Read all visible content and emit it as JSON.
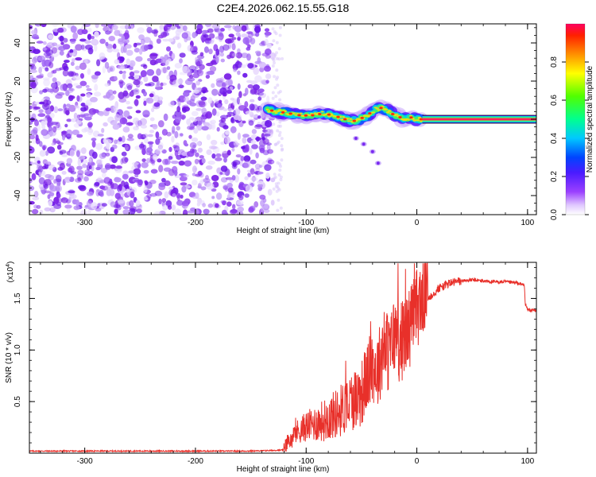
{
  "title": "C2E4.2026.062.15.55.G18",
  "colors": {
    "snr_line": "#e8302a",
    "spectrogram_noise": "#7a1fe6",
    "axis": "#000000",
    "background": "#ffffff"
  },
  "chart_data": [
    {
      "type": "heatmap",
      "name": "spectrogram",
      "xlabel": "Height of straight line (km)",
      "ylabel": "Frequency (Hz)",
      "xlim": [
        -350,
        108
      ],
      "ylim": [
        -50,
        50
      ],
      "xticks": [
        -300,
        -200,
        -100,
        0,
        100
      ],
      "xtick_labels": [
        "-300",
        "-200",
        "-100",
        "0",
        "100"
      ],
      "yticks": [
        -40,
        -20,
        0,
        20,
        40
      ],
      "ytick_labels": [
        "-40",
        "-20",
        "0",
        "20",
        "40"
      ],
      "noise_region_x": [
        -350,
        -130
      ],
      "signal_track": {
        "x": [
          -135,
          -125,
          -115,
          -105,
          -95,
          -85,
          -75,
          -65,
          -55,
          -45,
          -38,
          -32,
          -25,
          -20,
          -15,
          -10,
          -5,
          0,
          5,
          108
        ],
        "y": [
          5,
          4,
          3,
          2,
          2,
          3,
          2,
          0,
          -1,
          2,
          5,
          6,
          4,
          2,
          1,
          0,
          1,
          0,
          0,
          0
        ]
      },
      "tail_blobs": [
        {
          "x": -55,
          "y": -10
        },
        {
          "x": -48,
          "y": -13
        },
        {
          "x": -40,
          "y": -17
        },
        {
          "x": -35,
          "y": -23
        }
      ]
    },
    {
      "type": "colorbar",
      "name": "colorbar",
      "label": "Normalized spectral amplitude",
      "range": [
        0,
        1
      ],
      "ticks": [
        0,
        0.2,
        0.4,
        0.6,
        0.8
      ],
      "tick_labels": [
        "0.0",
        "0.2",
        "0.4",
        "0.6",
        "0.8"
      ]
    },
    {
      "type": "line",
      "name": "snr",
      "xlabel": "Height of straight line (km)",
      "ylabel": "SNR (10 * v/v)",
      "yscale_label": "(x10",
      "yscale_exp": "4",
      "yscale_close": ")",
      "xlim": [
        -350,
        108
      ],
      "ylim": [
        0,
        18500
      ],
      "xticks": [
        -300,
        -200,
        -100,
        0,
        100
      ],
      "xtick_labels": [
        "-300",
        "-200",
        "-100",
        "0",
        "100"
      ],
      "yticks": [
        5000,
        10000,
        15000
      ],
      "ytick_labels": [
        "0.5",
        "1.0",
        "1.5"
      ],
      "series": [
        {
          "name": "SNR",
          "x": [
            -350,
            -300,
            -250,
            -200,
            -150,
            -120,
            -115,
            -110,
            -100,
            -90,
            -80,
            -70,
            -60,
            -50,
            -45,
            -40,
            -35,
            -30,
            -25,
            -20,
            -15,
            -10,
            -5,
            0,
            5,
            10,
            15,
            20,
            30,
            40,
            50,
            60,
            70,
            80,
            90,
            97,
            98,
            100,
            108
          ],
          "values": [
            200,
            200,
            200,
            200,
            200,
            300,
            800,
            1500,
            2000,
            2200,
            2500,
            3000,
            3800,
            4500,
            6000,
            7000,
            6500,
            9000,
            8000,
            10000,
            9000,
            10000,
            11000,
            12500,
            13500,
            15000,
            15500,
            16000,
            16500,
            16700,
            16800,
            16700,
            16600,
            16600,
            16500,
            16300,
            14500,
            13900,
            13800
          ]
        }
      ]
    }
  ]
}
